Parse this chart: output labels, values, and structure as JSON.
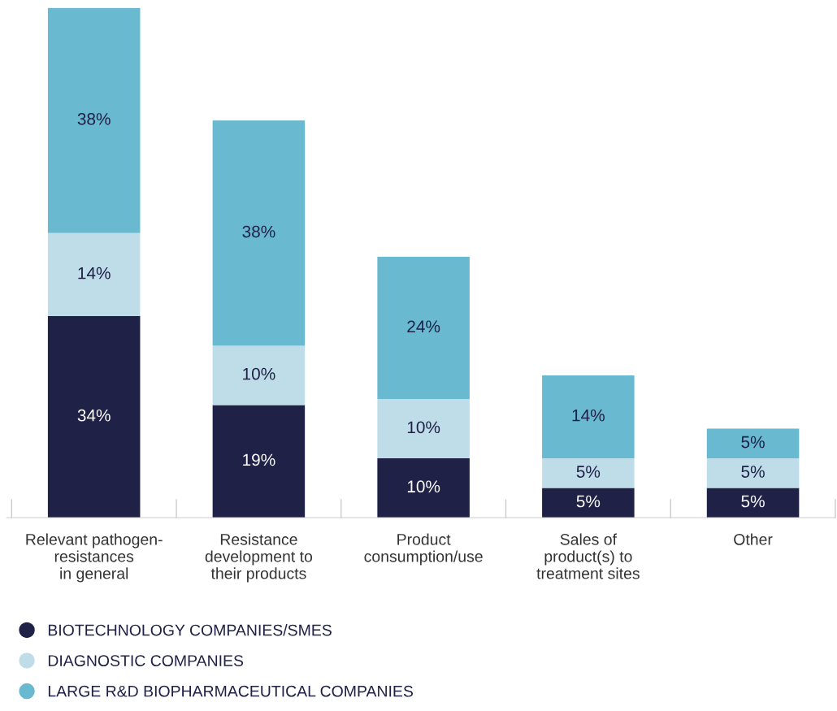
{
  "chart_data": {
    "type": "bar",
    "stacked": true,
    "legend": "bottom",
    "grid": false,
    "tick_labels": "x",
    "categories": [
      "Relevant pathogen-\nresistances\nin general",
      "Resistance\ndevelopment to\ntheir products",
      "Product\nconsumption/use",
      "Sales of\nproduct(s) to\ntreatment sites",
      "Other"
    ],
    "series": [
      {
        "name": "BIOTECHNOLOGY COMPANIES/SMES",
        "color": "#1f2147",
        "values": [
          34,
          19,
          10,
          5,
          5
        ],
        "value_labels": [
          "34%",
          "19%",
          "10%",
          "5%",
          "5%"
        ]
      },
      {
        "name": "DIAGNOSTIC COMPANIES",
        "color": "#bfdde8",
        "values": [
          14,
          10,
          10,
          5,
          5
        ],
        "value_labels": [
          "14%",
          "10%",
          "10%",
          "5%",
          "5%"
        ]
      },
      {
        "name": "LARGE R&D BIOPHARMACEUTICAL COMPANIES",
        "color": "#69b9d1",
        "values": [
          38,
          38,
          24,
          14,
          5
        ],
        "value_labels": [
          "38%",
          "38%",
          "24%",
          "14%",
          "5%"
        ]
      }
    ]
  }
}
